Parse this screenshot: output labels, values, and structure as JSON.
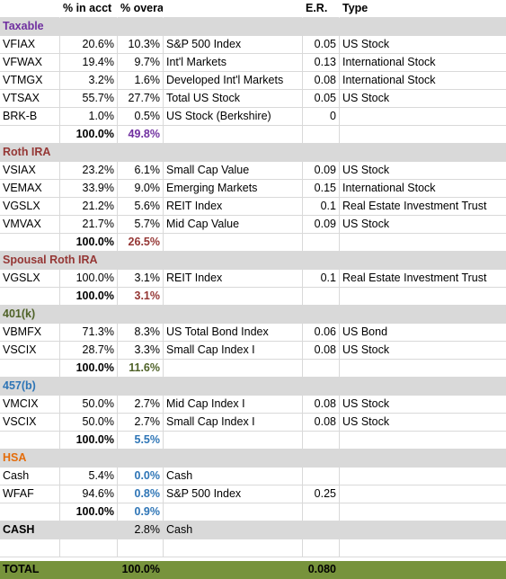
{
  "columns": {
    "pct_acct": "% in acct",
    "pct_overall": "% overall",
    "er": "E.R.",
    "type": "Type"
  },
  "colors": {
    "taxable": "#7030a0",
    "roth": "#953735",
    "spousal_roth": "#953735",
    "k401": "#4f6228",
    "b457": "#2e75b6",
    "hsa": "#e46c0a",
    "total_bar": "#77933c",
    "section_bar": "#d9d9d9"
  },
  "sections": [
    {
      "name": "Taxable",
      "color": "#7030a0",
      "rows": [
        {
          "ticker": "VFIAX",
          "pct_acct": "20.6%",
          "pct_overall": "10.3%",
          "desc": "S&P 500 Index",
          "er": "0.05",
          "type": "US Stock"
        },
        {
          "ticker": "VFWAX",
          "pct_acct": "19.4%",
          "pct_overall": "9.7%",
          "desc": "Int'l Markets",
          "er": "0.13",
          "type": "International Stock"
        },
        {
          "ticker": "VTMGX",
          "pct_acct": "3.2%",
          "pct_overall": "1.6%",
          "desc": "Developed Int'l Markets",
          "er": "0.08",
          "type": "International Stock"
        },
        {
          "ticker": "VTSAX",
          "pct_acct": "55.7%",
          "pct_overall": "27.7%",
          "desc": "Total US Stock",
          "er": "0.05",
          "type": "US Stock"
        },
        {
          "ticker": "BRK-B",
          "pct_acct": "1.0%",
          "pct_overall": "0.5%",
          "desc": "US Stock (Berkshire)",
          "er": "0",
          "type": ""
        }
      ],
      "subtotal_acct": "100.0%",
      "subtotal_overall": "49.8%"
    },
    {
      "name": "Roth IRA",
      "color": "#953735",
      "rows": [
        {
          "ticker": "VSIAX",
          "pct_acct": "23.2%",
          "pct_overall": "6.1%",
          "desc": "Small Cap Value",
          "er": "0.09",
          "type": "US Stock"
        },
        {
          "ticker": "VEMAX",
          "pct_acct": "33.9%",
          "pct_overall": "9.0%",
          "desc": "Emerging Markets",
          "er": "0.15",
          "type": "International Stock"
        },
        {
          "ticker": "VGSLX",
          "pct_acct": "21.2%",
          "pct_overall": "5.6%",
          "desc": "REIT Index",
          "er": "0.1",
          "type": "Real Estate Investment Trust"
        },
        {
          "ticker": "VMVAX",
          "pct_acct": "21.7%",
          "pct_overall": "5.7%",
          "desc": "Mid Cap Value",
          "er": "0.09",
          "type": "US Stock"
        }
      ],
      "subtotal_acct": "100.0%",
      "subtotal_overall": "26.5%"
    },
    {
      "name": "Spousal Roth IRA",
      "color": "#953735",
      "rows": [
        {
          "ticker": "VGSLX",
          "pct_acct": "100.0%",
          "pct_overall": "3.1%",
          "desc": "REIT Index",
          "er": "0.1",
          "type": "Real Estate Investment Trust"
        }
      ],
      "subtotal_acct": "100.0%",
      "subtotal_overall": "3.1%"
    },
    {
      "name": "401(k)",
      "color": "#4f6228",
      "rows": [
        {
          "ticker": "VBMFX",
          "pct_acct": "71.3%",
          "pct_overall": "8.3%",
          "desc": "US Total Bond Index",
          "er": "0.06",
          "type": "US Bond"
        },
        {
          "ticker": "VSCIX",
          "pct_acct": "28.7%",
          "pct_overall": "3.3%",
          "desc": "Small Cap Index I",
          "er": "0.08",
          "type": "US Stock"
        }
      ],
      "subtotal_acct": "100.0%",
      "subtotal_overall": "11.6%"
    },
    {
      "name": "457(b)",
      "color": "#2e75b6",
      "rows": [
        {
          "ticker": "VMCIX",
          "pct_acct": "50.0%",
          "pct_overall": "2.7%",
          "desc": "Mid Cap Index I",
          "er": "0.08",
          "type": "US Stock"
        },
        {
          "ticker": "VSCIX",
          "pct_acct": "50.0%",
          "pct_overall": "2.7%",
          "desc": "Small Cap Index I",
          "er": "0.08",
          "type": "US Stock"
        }
      ],
      "subtotal_acct": "100.0%",
      "subtotal_overall": "5.5%"
    },
    {
      "name": "HSA",
      "color": "#e46c0a",
      "rows": [
        {
          "ticker": "Cash",
          "pct_acct": "5.4%",
          "pct_overall": "0.0%",
          "desc": "Cash",
          "er": "",
          "type": "",
          "overall_colored": true
        },
        {
          "ticker": "WFAF",
          "pct_acct": "94.6%",
          "pct_overall": "0.8%",
          "desc": "S&P 500 Index",
          "er": "0.25",
          "type": "",
          "overall_colored": true
        }
      ],
      "subtotal_acct": "100.0%",
      "subtotal_overall": "0.9%"
    }
  ],
  "cash": {
    "label": "CASH",
    "pct_overall": "2.8%",
    "desc": "Cash"
  },
  "total": {
    "label": "TOTAL",
    "pct_overall": "100.0%",
    "er": "0.080"
  }
}
